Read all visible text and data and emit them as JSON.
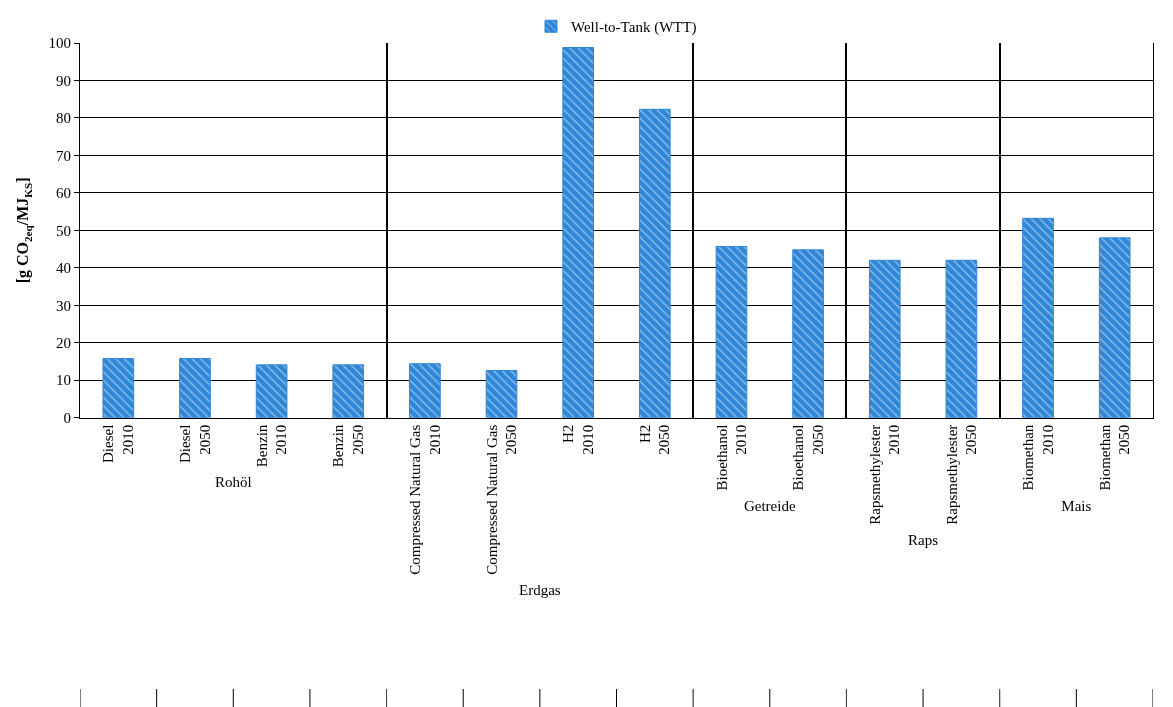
{
  "chart_data": [
    {
      "type": "bar",
      "xlabel": "Rohöl",
      "ylabel": "[g CO$_{2eq}$/MJ$_{KS}$]",
      "categories": [
        "Diesel\n2010",
        "Diesel\n2050",
        "Benzin\n2010",
        "Benzin\n2050"
      ],
      "series": [
        {
          "name": "Well-to-Tank (WTT)",
          "color": "#2f86d6",
          "values": [
            15.8,
            15.8,
            14.1,
            14.1
          ]
        }
      ],
      "ylim": [
        0,
        100
      ],
      "yticks": [
        0,
        10,
        20,
        30,
        40,
        50,
        60,
        70,
        80,
        90,
        100
      ],
      "grid": "y",
      "legend": "top"
    },
    {
      "type": "bar",
      "xlabel": "Erdgas",
      "categories": [
        "Compressed Natural Gas\n2010",
        "Compressed Natural Gas\n2050",
        "H2\n2010",
        "H2\n2050"
      ],
      "series": [
        {
          "color": "#2f86d6",
          "values": [
            14.4,
            12.6,
            98.8,
            82.3
          ]
        }
      ],
      "ylim": [
        0,
        100
      ],
      "yticks": [
        0,
        10,
        20,
        30,
        40,
        50,
        60,
        70,
        80,
        90,
        100
      ],
      "grid": "y",
      "tick_labels": "x"
    },
    {
      "type": "bar",
      "xlabel": "Getreide",
      "categories": [
        "Bioethanol\n2010",
        "Bioethanol\n2050"
      ],
      "series": [
        {
          "color": "#2f86d6",
          "values": [
            45.7,
            44.8
          ]
        }
      ],
      "ylim": [
        0,
        100
      ],
      "yticks": [
        0,
        10,
        20,
        30,
        40,
        50,
        60,
        70,
        80,
        90,
        100
      ],
      "grid": "y",
      "tick_labels": "x"
    },
    {
      "type": "bar",
      "xlabel": "Raps",
      "categories": [
        "Rapsmethylester\n2010",
        "Rapsmethylester\n2050"
      ],
      "series": [
        {
          "color": "#2f86d6",
          "values": [
            42.0,
            42.0
          ]
        }
      ],
      "ylim": [
        0,
        100
      ],
      "yticks": [
        0,
        10,
        20,
        30,
        40,
        50,
        60,
        70,
        80,
        90,
        100
      ],
      "grid": "y",
      "tick_labels": "x"
    },
    {
      "type": "bar",
      "xlabel": "Mais",
      "categories": [
        "Biomethan\n2010",
        "Biomethan\n2050"
      ],
      "series": [
        {
          "color": "#2f86d6",
          "values": [
            53.2,
            48.0
          ]
        }
      ],
      "ylim": [
        0,
        100
      ],
      "yticks": [
        0,
        10,
        20,
        30,
        40,
        50,
        60,
        70,
        80,
        90,
        100
      ],
      "grid": "y",
      "tick_labels": "x"
    }
  ]
}
